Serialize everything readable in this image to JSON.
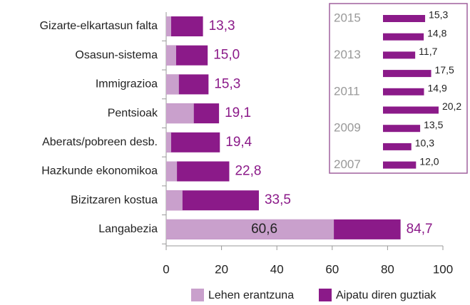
{
  "chart_data": [
    {
      "type": "bar",
      "categories": [
        "Gizarte-elkartasun falta",
        "Osasun-sistema",
        "Immigrazioa",
        "Pentsioak",
        "Aberats/pobreen desb.",
        "Hazkunde ekonomikoa",
        "Bizitzaren kostua",
        "Langabezia"
      ],
      "series": [
        {
          "name": "Lehen erantzuna",
          "color": "#c9a0cc",
          "values": [
            1.8,
            3.6,
            4.6,
            10,
            1.8,
            3.9,
            5.9,
            60.6
          ],
          "value_labels": [
            null,
            null,
            null,
            null,
            null,
            null,
            null,
            "60,6"
          ]
        },
        {
          "name": "Aipatu diren guztiak",
          "color": "#8b1a89",
          "values": [
            13.3,
            15.0,
            15.3,
            19.1,
            19.4,
            22.8,
            33.5,
            84.7
          ],
          "value_labels": [
            "13,3",
            "15,0",
            "15,3",
            "19,1",
            "19,4",
            "22,8",
            "33,5",
            "84,7"
          ]
        }
      ],
      "xlim": [
        0,
        100
      ],
      "xticks": [
        0,
        20,
        40,
        60,
        80,
        100
      ],
      "legend": "bottom"
    },
    {
      "type": "bar",
      "categories": [
        "2015",
        null,
        "2013",
        null,
        "2011",
        null,
        "2009",
        null,
        "2007"
      ],
      "values": [
        15.3,
        14.8,
        11.7,
        17.5,
        14.9,
        20.2,
        13.5,
        10.3,
        12.0
      ],
      "value_labels": [
        "15,3",
        "14,8",
        "11,7",
        "17,5",
        "14,9",
        "20,2",
        "13,5",
        "10,3",
        "12,0"
      ],
      "color": "#8b1a89"
    }
  ]
}
